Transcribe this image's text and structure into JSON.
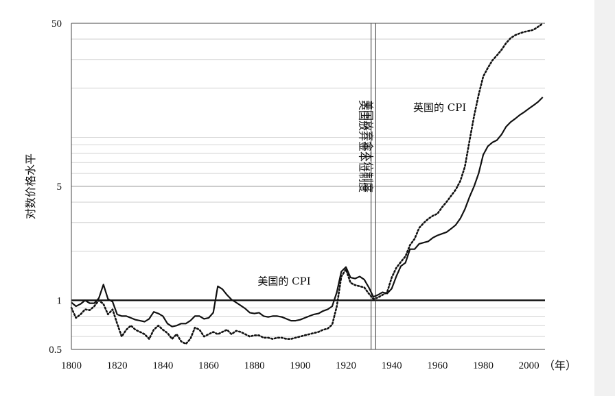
{
  "chart_data": {
    "type": "line",
    "title": "",
    "xlabel": "（年）",
    "ylabel": "对数价格水平",
    "yscale": "log",
    "xlim": [
      1800,
      2007
    ],
    "ylim": [
      0.5,
      50
    ],
    "x_ticks": [
      1800,
      1820,
      1840,
      1860,
      1880,
      1900,
      1920,
      1940,
      1960,
      1980,
      2000
    ],
    "y_ticks": [
      0.5,
      1,
      5,
      50
    ],
    "y_tick_labels": [
      "0.5",
      "1",
      "5",
      "50"
    ],
    "grid": "horizontal",
    "baseline": 1,
    "series": [
      {
        "name": "英国的 CPI",
        "style": "dotted",
        "x": [
          1800,
          1802,
          1804,
          1806,
          1808,
          1810,
          1812,
          1814,
          1816,
          1818,
          1820,
          1822,
          1824,
          1826,
          1828,
          1830,
          1832,
          1834,
          1836,
          1838,
          1840,
          1842,
          1844,
          1846,
          1848,
          1850,
          1852,
          1854,
          1856,
          1858,
          1860,
          1862,
          1864,
          1866,
          1868,
          1870,
          1872,
          1874,
          1876,
          1878,
          1880,
          1882,
          1884,
          1886,
          1888,
          1890,
          1892,
          1894,
          1896,
          1898,
          1900,
          1902,
          1904,
          1906,
          1908,
          1910,
          1912,
          1914,
          1916,
          1918,
          1920,
          1922,
          1924,
          1926,
          1928,
          1930,
          1932,
          1934,
          1936,
          1938,
          1940,
          1942,
          1944,
          1946,
          1948,
          1950,
          1952,
          1954,
          1956,
          1958,
          1960,
          1962,
          1964,
          1966,
          1968,
          1970,
          1972,
          1974,
          1976,
          1978,
          1980,
          1982,
          1984,
          1986,
          1988,
          1990,
          1992,
          1994,
          1996,
          1998,
          2000,
          2002,
          2004,
          2006
        ],
        "values": [
          0.9,
          0.78,
          0.82,
          0.88,
          0.87,
          0.92,
          1.0,
          0.95,
          0.82,
          0.88,
          0.72,
          0.6,
          0.66,
          0.7,
          0.66,
          0.64,
          0.62,
          0.58,
          0.66,
          0.7,
          0.66,
          0.63,
          0.58,
          0.62,
          0.56,
          0.54,
          0.58,
          0.68,
          0.66,
          0.6,
          0.62,
          0.64,
          0.62,
          0.64,
          0.66,
          0.62,
          0.65,
          0.64,
          0.62,
          0.6,
          0.61,
          0.61,
          0.59,
          0.59,
          0.58,
          0.59,
          0.59,
          0.58,
          0.58,
          0.59,
          0.6,
          0.61,
          0.62,
          0.63,
          0.64,
          0.66,
          0.67,
          0.71,
          0.92,
          1.4,
          1.55,
          1.28,
          1.24,
          1.22,
          1.2,
          1.1,
          1.02,
          1.04,
          1.08,
          1.12,
          1.38,
          1.58,
          1.72,
          1.86,
          2.18,
          2.38,
          2.78,
          2.98,
          3.16,
          3.3,
          3.4,
          3.72,
          4.02,
          4.38,
          4.78,
          5.4,
          6.6,
          9.5,
          13.5,
          18.2,
          23.6,
          26.6,
          29.6,
          31.8,
          34.4,
          37.8,
          40.6,
          42.3,
          43.4,
          44.3,
          44.9,
          45.6,
          47.6,
          49.8
        ]
      },
      {
        "name": "美国的 CPI",
        "style": "solid",
        "x": [
          1800,
          1802,
          1804,
          1806,
          1808,
          1810,
          1812,
          1814,
          1816,
          1818,
          1820,
          1822,
          1824,
          1826,
          1828,
          1830,
          1832,
          1834,
          1836,
          1838,
          1840,
          1842,
          1844,
          1846,
          1848,
          1850,
          1852,
          1854,
          1856,
          1858,
          1860,
          1862,
          1864,
          1866,
          1868,
          1870,
          1872,
          1874,
          1876,
          1878,
          1880,
          1882,
          1884,
          1886,
          1888,
          1890,
          1892,
          1894,
          1896,
          1898,
          1900,
          1902,
          1904,
          1906,
          1908,
          1910,
          1912,
          1914,
          1916,
          1918,
          1920,
          1922,
          1924,
          1926,
          1928,
          1930,
          1932,
          1934,
          1936,
          1938,
          1940,
          1942,
          1944,
          1946,
          1948,
          1950,
          1952,
          1954,
          1956,
          1958,
          1960,
          1962,
          1964,
          1966,
          1968,
          1970,
          1972,
          1974,
          1976,
          1978,
          1980,
          1982,
          1984,
          1986,
          1988,
          1990,
          1992,
          1994,
          1996,
          1998,
          2000,
          2002,
          2004,
          2006
        ],
        "values": [
          0.97,
          0.92,
          0.95,
          1.0,
          0.96,
          0.96,
          1.03,
          1.25,
          1.02,
          0.98,
          0.82,
          0.8,
          0.8,
          0.78,
          0.76,
          0.75,
          0.74,
          0.77,
          0.85,
          0.83,
          0.8,
          0.72,
          0.69,
          0.7,
          0.72,
          0.72,
          0.75,
          0.8,
          0.8,
          0.77,
          0.78,
          0.84,
          1.22,
          1.17,
          1.08,
          1.01,
          0.97,
          0.93,
          0.89,
          0.84,
          0.83,
          0.84,
          0.8,
          0.79,
          0.8,
          0.8,
          0.79,
          0.77,
          0.75,
          0.75,
          0.76,
          0.78,
          0.8,
          0.82,
          0.83,
          0.86,
          0.88,
          0.92,
          1.12,
          1.5,
          1.6,
          1.38,
          1.36,
          1.4,
          1.34,
          1.2,
          1.05,
          1.08,
          1.12,
          1.1,
          1.18,
          1.4,
          1.62,
          1.7,
          2.06,
          2.06,
          2.22,
          2.26,
          2.3,
          2.42,
          2.5,
          2.56,
          2.62,
          2.75,
          2.9,
          3.18,
          3.62,
          4.3,
          5.0,
          6.0,
          7.8,
          8.8,
          9.3,
          9.6,
          10.4,
          11.6,
          12.4,
          13.0,
          13.7,
          14.3,
          15.0,
          15.7,
          16.5,
          17.6
        ]
      }
    ],
    "annotations": [
      {
        "text": "英国的 CPI",
        "x": 1961,
        "y": 14.5
      },
      {
        "text": "美国的 CPI",
        "x": 1893,
        "y": 1.25
      }
    ],
    "vertical_markers": [
      {
        "text": "英国放弃金本位制度",
        "x": 1931
      },
      {
        "text": "美国放弃金本位制度",
        "x": 1933
      }
    ]
  }
}
